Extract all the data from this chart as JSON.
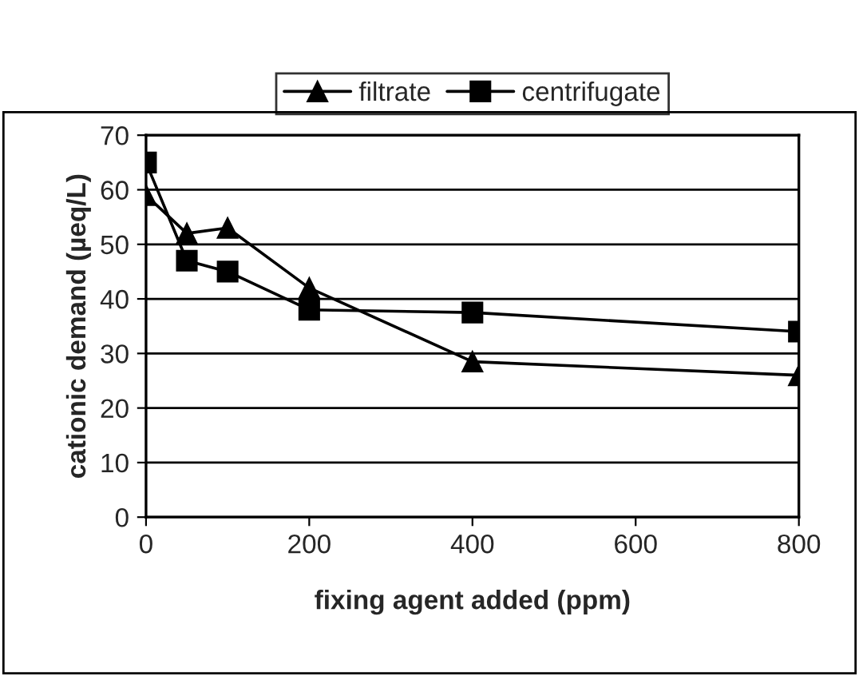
{
  "chart_data": {
    "type": "line",
    "xlabel": "fixing agent added (ppm)",
    "ylabel": "cationic demand (µeq/L)",
    "x": [
      0,
      50,
      100,
      200,
      400,
      800
    ],
    "series": [
      {
        "name": "filtrate",
        "color": "#000000",
        "marker": "triangle",
        "values": [
          59,
          52,
          53,
          42,
          28.5,
          26
        ]
      },
      {
        "name": "centrifugate",
        "color": "#000000",
        "marker": "square",
        "values": [
          65,
          47,
          45,
          38,
          37.5,
          34
        ]
      }
    ],
    "xlim": [
      0,
      800
    ],
    "xticks": [
      0,
      200,
      400,
      600,
      800
    ],
    "ylim": [
      0,
      70
    ],
    "yticks": [
      0,
      10,
      20,
      30,
      40,
      50,
      60,
      70
    ],
    "grid": "y",
    "legend": "top",
    "line_style": "solid"
  }
}
